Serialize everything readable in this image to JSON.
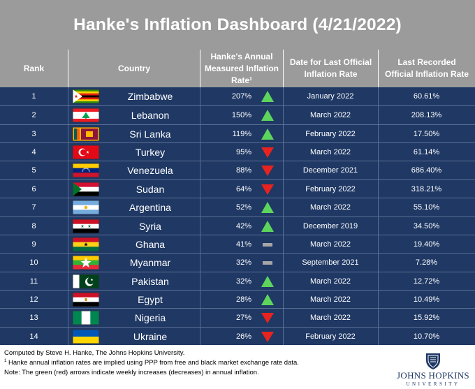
{
  "title": "Hanke's Inflation Dashboard (4/21/2022)",
  "headers": {
    "rank": "Rank",
    "country": "Country",
    "hanke_rate": "Hanke's Annual Measured Inflation Rate",
    "hanke_rate_sup": "1",
    "date": "Date for Last Official Inflation Rate",
    "official": "Last Recorded Official Inflation Rate"
  },
  "colors": {
    "title_bg": "#9b9b9b",
    "table_bg": "#1f3864",
    "arrow_up": "#5dd55d",
    "arrow_down": "#e8231f",
    "flat": "#a6a6a6"
  },
  "chart_data": {
    "type": "table",
    "columns": [
      "Rank",
      "Country",
      "Hanke's Annual Measured Inflation Rate",
      "Date for Last Official Inflation Rate",
      "Last Recorded Official Inflation Rate"
    ],
    "rows": [
      {
        "rank": "1",
        "country": "Zimbabwe",
        "flag": "zimbabwe-flag",
        "rate": "207%",
        "trend": "up",
        "date": "January 2022",
        "official": "60.61%"
      },
      {
        "rank": "2",
        "country": "Lebanon",
        "flag": "lebanon-flag",
        "rate": "150%",
        "trend": "up",
        "date": "March 2022",
        "official": "208.13%"
      },
      {
        "rank": "3",
        "country": "Sri Lanka",
        "flag": "sri-lanka-flag",
        "rate": "119%",
        "trend": "up",
        "date": "February 2022",
        "official": "17.50%"
      },
      {
        "rank": "4",
        "country": "Turkey",
        "flag": "turkey-flag",
        "rate": "95%",
        "trend": "down",
        "date": "March 2022",
        "official": "61.14%"
      },
      {
        "rank": "5",
        "country": "Venezuela",
        "flag": "venezuela-flag",
        "rate": "88%",
        "trend": "down",
        "date": "December 2021",
        "official": "686.40%"
      },
      {
        "rank": "6",
        "country": "Sudan",
        "flag": "sudan-flag",
        "rate": "64%",
        "trend": "down",
        "date": "February 2022",
        "official": "318.21%"
      },
      {
        "rank": "7",
        "country": "Argentina",
        "flag": "argentina-flag",
        "rate": "52%",
        "trend": "up",
        "date": "March 2022",
        "official": "55.10%"
      },
      {
        "rank": "8",
        "country": "Syria",
        "flag": "syria-flag",
        "rate": "42%",
        "trend": "up",
        "date": "December 2019",
        "official": "34.50%"
      },
      {
        "rank": "9",
        "country": "Ghana",
        "flag": "ghana-flag",
        "rate": "41%",
        "trend": "flat",
        "date": "March 2022",
        "official": "19.40%"
      },
      {
        "rank": "10",
        "country": "Myanmar",
        "flag": "myanmar-flag",
        "rate": "32%",
        "trend": "flat",
        "date": "September 2021",
        "official": "7.28%"
      },
      {
        "rank": "11",
        "country": "Pakistan",
        "flag": "pakistan-flag",
        "rate": "32%",
        "trend": "up",
        "date": "March 2022",
        "official": "12.72%"
      },
      {
        "rank": "12",
        "country": "Egypt",
        "flag": "egypt-flag",
        "rate": "28%",
        "trend": "up",
        "date": "March 2022",
        "official": "10.49%"
      },
      {
        "rank": "13",
        "country": "Nigeria",
        "flag": "nigeria-flag",
        "rate": "27%",
        "trend": "down",
        "date": "March 2022",
        "official": "15.92%"
      },
      {
        "rank": "14",
        "country": "Ukraine",
        "flag": "ukraine-flag",
        "rate": "26%",
        "trend": "down",
        "date": "February 2022",
        "official": "10.70%"
      }
    ]
  },
  "footnotes": {
    "line1": "Computed by Steve H. Hanke, The Johns Hopkins University.",
    "line2_sup": "1",
    "line2": " Hanke annual inflation rates are implied using PPP from free and black market exchange rate data.",
    "line3": "Note: The green (red) arrows indicate weekly increases (decreases) in annual inflation."
  },
  "logo": {
    "name": "JOHNS HOPKINS",
    "sub": "UNIVERSITY",
    "icon": "jhu-shield-icon"
  }
}
